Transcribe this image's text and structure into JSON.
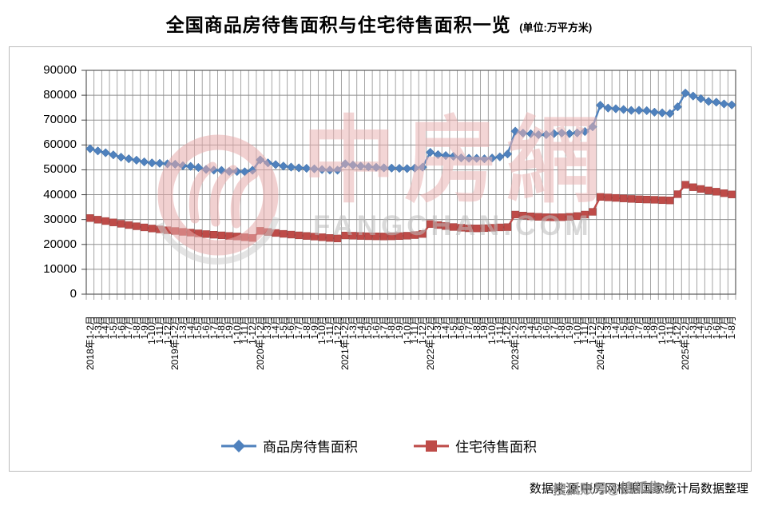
{
  "title": {
    "main": "全国商品房待售面积与住宅待售面积一览",
    "unit": "(单位:万平方米)"
  },
  "footer": {
    "source": "数据来源:中房网根据国家统计局数据整理"
  },
  "watermark": {
    "logo_text": "中房網",
    "domain": "FANGCHAN.COM",
    "footer_overlay": "搜狐账号@搜狐焦点"
  },
  "legend": [
    {
      "label": "商品房待售面积",
      "color": "#4F81BD",
      "marker": "diamond"
    },
    {
      "label": "住宅待售面积",
      "color": "#BE4B48",
      "marker": "square"
    }
  ],
  "chart_data": {
    "type": "line",
    "title": "全国商品房待售面积与住宅待售面积一览",
    "unit": "万平方米",
    "grid": true,
    "legend_position": "bottom",
    "y_axis": {
      "min": 0,
      "max": 90000,
      "step": 10000,
      "ticks": [
        0,
        10000,
        20000,
        30000,
        40000,
        50000,
        60000,
        70000,
        80000,
        90000
      ]
    },
    "categories": [
      "2018年1-2月",
      "1-3月",
      "1-4月",
      "1-5月",
      "1-6月",
      "1-7月",
      "1-8月",
      "1-9月",
      "1-10月",
      "1-11月",
      "1-12月",
      "2019年1-2月",
      "1-3月",
      "1-4月",
      "1-5月",
      "1-6月",
      "1-7月",
      "1-8月",
      "1-9月",
      "1-10月",
      "1-11月",
      "1-12月",
      "2020年1-2月",
      "1-3月",
      "1-4月",
      "1-5月",
      "1-6月",
      "1-7月",
      "1-8月",
      "1-9月",
      "1-10月",
      "1-11月",
      "1-12月",
      "2021年1-2月",
      "1-3月",
      "1-4月",
      "1-5月",
      "1-6月",
      "1-7月",
      "1-8月",
      "1-9月",
      "1-10月",
      "1-11月",
      "1-12月",
      "2022年1-2月",
      "1-3月",
      "1-4月",
      "1-5月",
      "1-6月",
      "1-7月",
      "1-8月",
      "1-9月",
      "1-10月",
      "1-11月",
      "1-12月",
      "2023年1-2月",
      "1-3月",
      "1-4月",
      "1-5月",
      "1-6月",
      "1-7月",
      "1-8月",
      "1-9月",
      "1-10月",
      "1-11月",
      "1-12月",
      "2024年1-2月",
      "1-3月",
      "1-4月",
      "1-5月",
      "1-6月",
      "1-7月",
      "1-8月",
      "1-9月",
      "1-10月",
      "1-11月",
      "1-12月",
      "2025年1-2月",
      "1-3月",
      "1-4月",
      "1-5月",
      "1-6月",
      "1-7月",
      "1-8月"
    ],
    "series": [
      {
        "name": "商品房待售面积",
        "color": "#4F81BD",
        "marker": "diamond",
        "values": [
          58468,
          57600,
          56869,
          56010,
          55083,
          54428,
          53873,
          53191,
          52789,
          52627,
          52414,
          52251,
          51646,
          51380,
          50928,
          50162,
          49876,
          49784,
          49346,
          49323,
          49221,
          49821,
          54000,
          52800,
          52100,
          51500,
          51100,
          50800,
          50600,
          50400,
          50100,
          49900,
          49850,
          52425,
          51900,
          51500,
          51200,
          51000,
          50800,
          50700,
          50600,
          50500,
          50700,
          51063,
          57026,
          56113,
          55735,
          55433,
          54784,
          54655,
          54605,
          54426,
          54734,
          55203,
          56366,
          65528,
          64770,
          64487,
          64120,
          64159,
          64564,
          64795,
          64537,
          64835,
          65385,
          67295,
          75969,
          74833,
          74553,
          74256,
          73894,
          73926,
          73799,
          73177,
          72920,
          72645,
          75327,
          80864,
          79664,
          78600,
          77500,
          77200,
          76500,
          76100
        ]
      },
      {
        "name": "住宅待售面积",
        "color": "#BE4B48",
        "marker": "square",
        "values": [
          30600,
          29950,
          29400,
          28850,
          28300,
          27800,
          27300,
          26850,
          26400,
          26050,
          25700,
          25400,
          25050,
          24750,
          24450,
          24150,
          23900,
          23650,
          23400,
          23200,
          22900,
          22600,
          25450,
          25000,
          24600,
          24250,
          23950,
          23650,
          23400,
          23150,
          22900,
          22600,
          22400,
          23600,
          23500,
          23400,
          23300,
          23250,
          23200,
          23250,
          23350,
          23500,
          23750,
          24200,
          28200,
          27800,
          27400,
          27000,
          26700,
          26500,
          26450,
          26550,
          26700,
          26850,
          26947,
          32000,
          31600,
          31300,
          31100,
          30950,
          30900,
          30950,
          31100,
          31400,
          32000,
          33100,
          39100,
          38900,
          38700,
          38500,
          38300,
          38150,
          38050,
          37950,
          37800,
          37700,
          40200,
          44000,
          43000,
          42300,
          41700,
          41200,
          40600,
          40100
        ]
      }
    ]
  }
}
